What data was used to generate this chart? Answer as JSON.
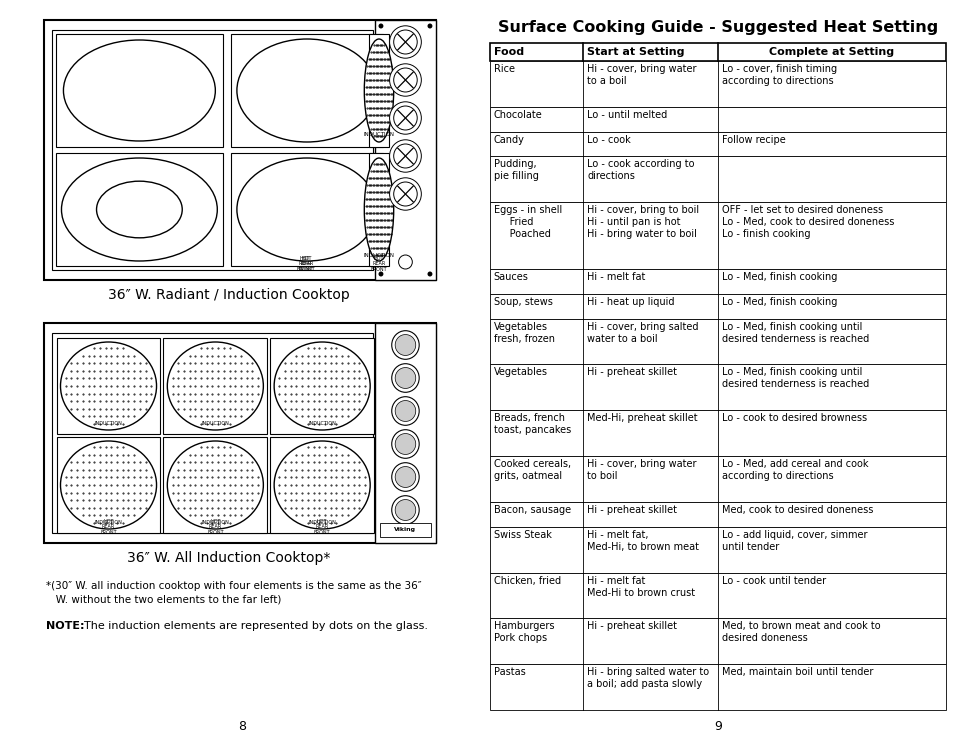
{
  "page_bg": "#ffffff",
  "title": "Surface Cooking Guide - Suggested Heat Setting",
  "header": [
    "Food",
    "Start at Setting",
    "Complete at Setting"
  ],
  "rows": [
    [
      "Rice",
      "Hi - cover, bring water\nto a boil",
      "Lo - cover, finish timing\naccording to directions"
    ],
    [
      "Chocolate",
      "Lo - until melted",
      ""
    ],
    [
      "Candy",
      "Lo - cook",
      "Follow recipe"
    ],
    [
      "Pudding,\npie filling",
      "Lo - cook according to\ndirections",
      ""
    ],
    [
      "Eggs - in shell\n     Fried\n     Poached",
      "Hi - cover, bring to boil\nHi - until pan is hot\nHi - bring water to boil",
      "OFF - let set to desired doneness\nLo - Med, cook to desired doneness\nLo - finish cooking"
    ],
    [
      "Sauces",
      "Hi - melt fat",
      "Lo - Med, finish cooking"
    ],
    [
      "Soup, stews",
      "Hi - heat up liquid",
      "Lo - Med, finish cooking"
    ],
    [
      "Vegetables\nfresh, frozen",
      "Hi - cover, bring salted\nwater to a boil",
      "Lo - Med, finish cooking until\ndesired tenderness is reached"
    ],
    [
      "Vegetables",
      "Hi - preheat skillet",
      "Lo - Med, finish cooking until\ndesired tenderness is reached"
    ],
    [
      "Breads, french\ntoast, pancakes",
      "Med-Hi, preheat skillet",
      "Lo - cook to desired browness"
    ],
    [
      "Cooked cereals,\ngrits, oatmeal",
      "Hi - cover, bring water\nto boil",
      "Lo - Med, add cereal and cook\naccording to directions"
    ],
    [
      "Bacon, sausage",
      "Hi - preheat skillet",
      "Med, cook to desired doneness"
    ],
    [
      "Swiss Steak",
      "Hi - melt fat,\nMed-Hi, to brown meat",
      "Lo - add liquid, cover, simmer\nuntil tender"
    ],
    [
      "Chicken, fried",
      "Hi - melt fat\nMed-Hi to brown crust",
      "Lo - cook until tender"
    ],
    [
      "Hamburgers\nPork chops",
      "Hi - preheat skillet",
      "Med, to brown meat and cook to\ndesired doneness"
    ],
    [
      "Pastas",
      "Hi - bring salted water to\na boil; add pasta slowly",
      "Med, maintain boil until tender"
    ]
  ],
  "caption1": "36″ W. Radiant / Induction Cooktop",
  "caption2": "36″ W. All Induction Cooktop*",
  "footnote_line1": "*(30″ W. all induction cooktop with four elements is the same as the 36″",
  "footnote_line2": "   W. without the two elements to the far left)",
  "note_bold": "NOTE:",
  "note_rest": "  The induction elements are represented by dots on the glass.",
  "page_left": "8",
  "page_right": "9"
}
